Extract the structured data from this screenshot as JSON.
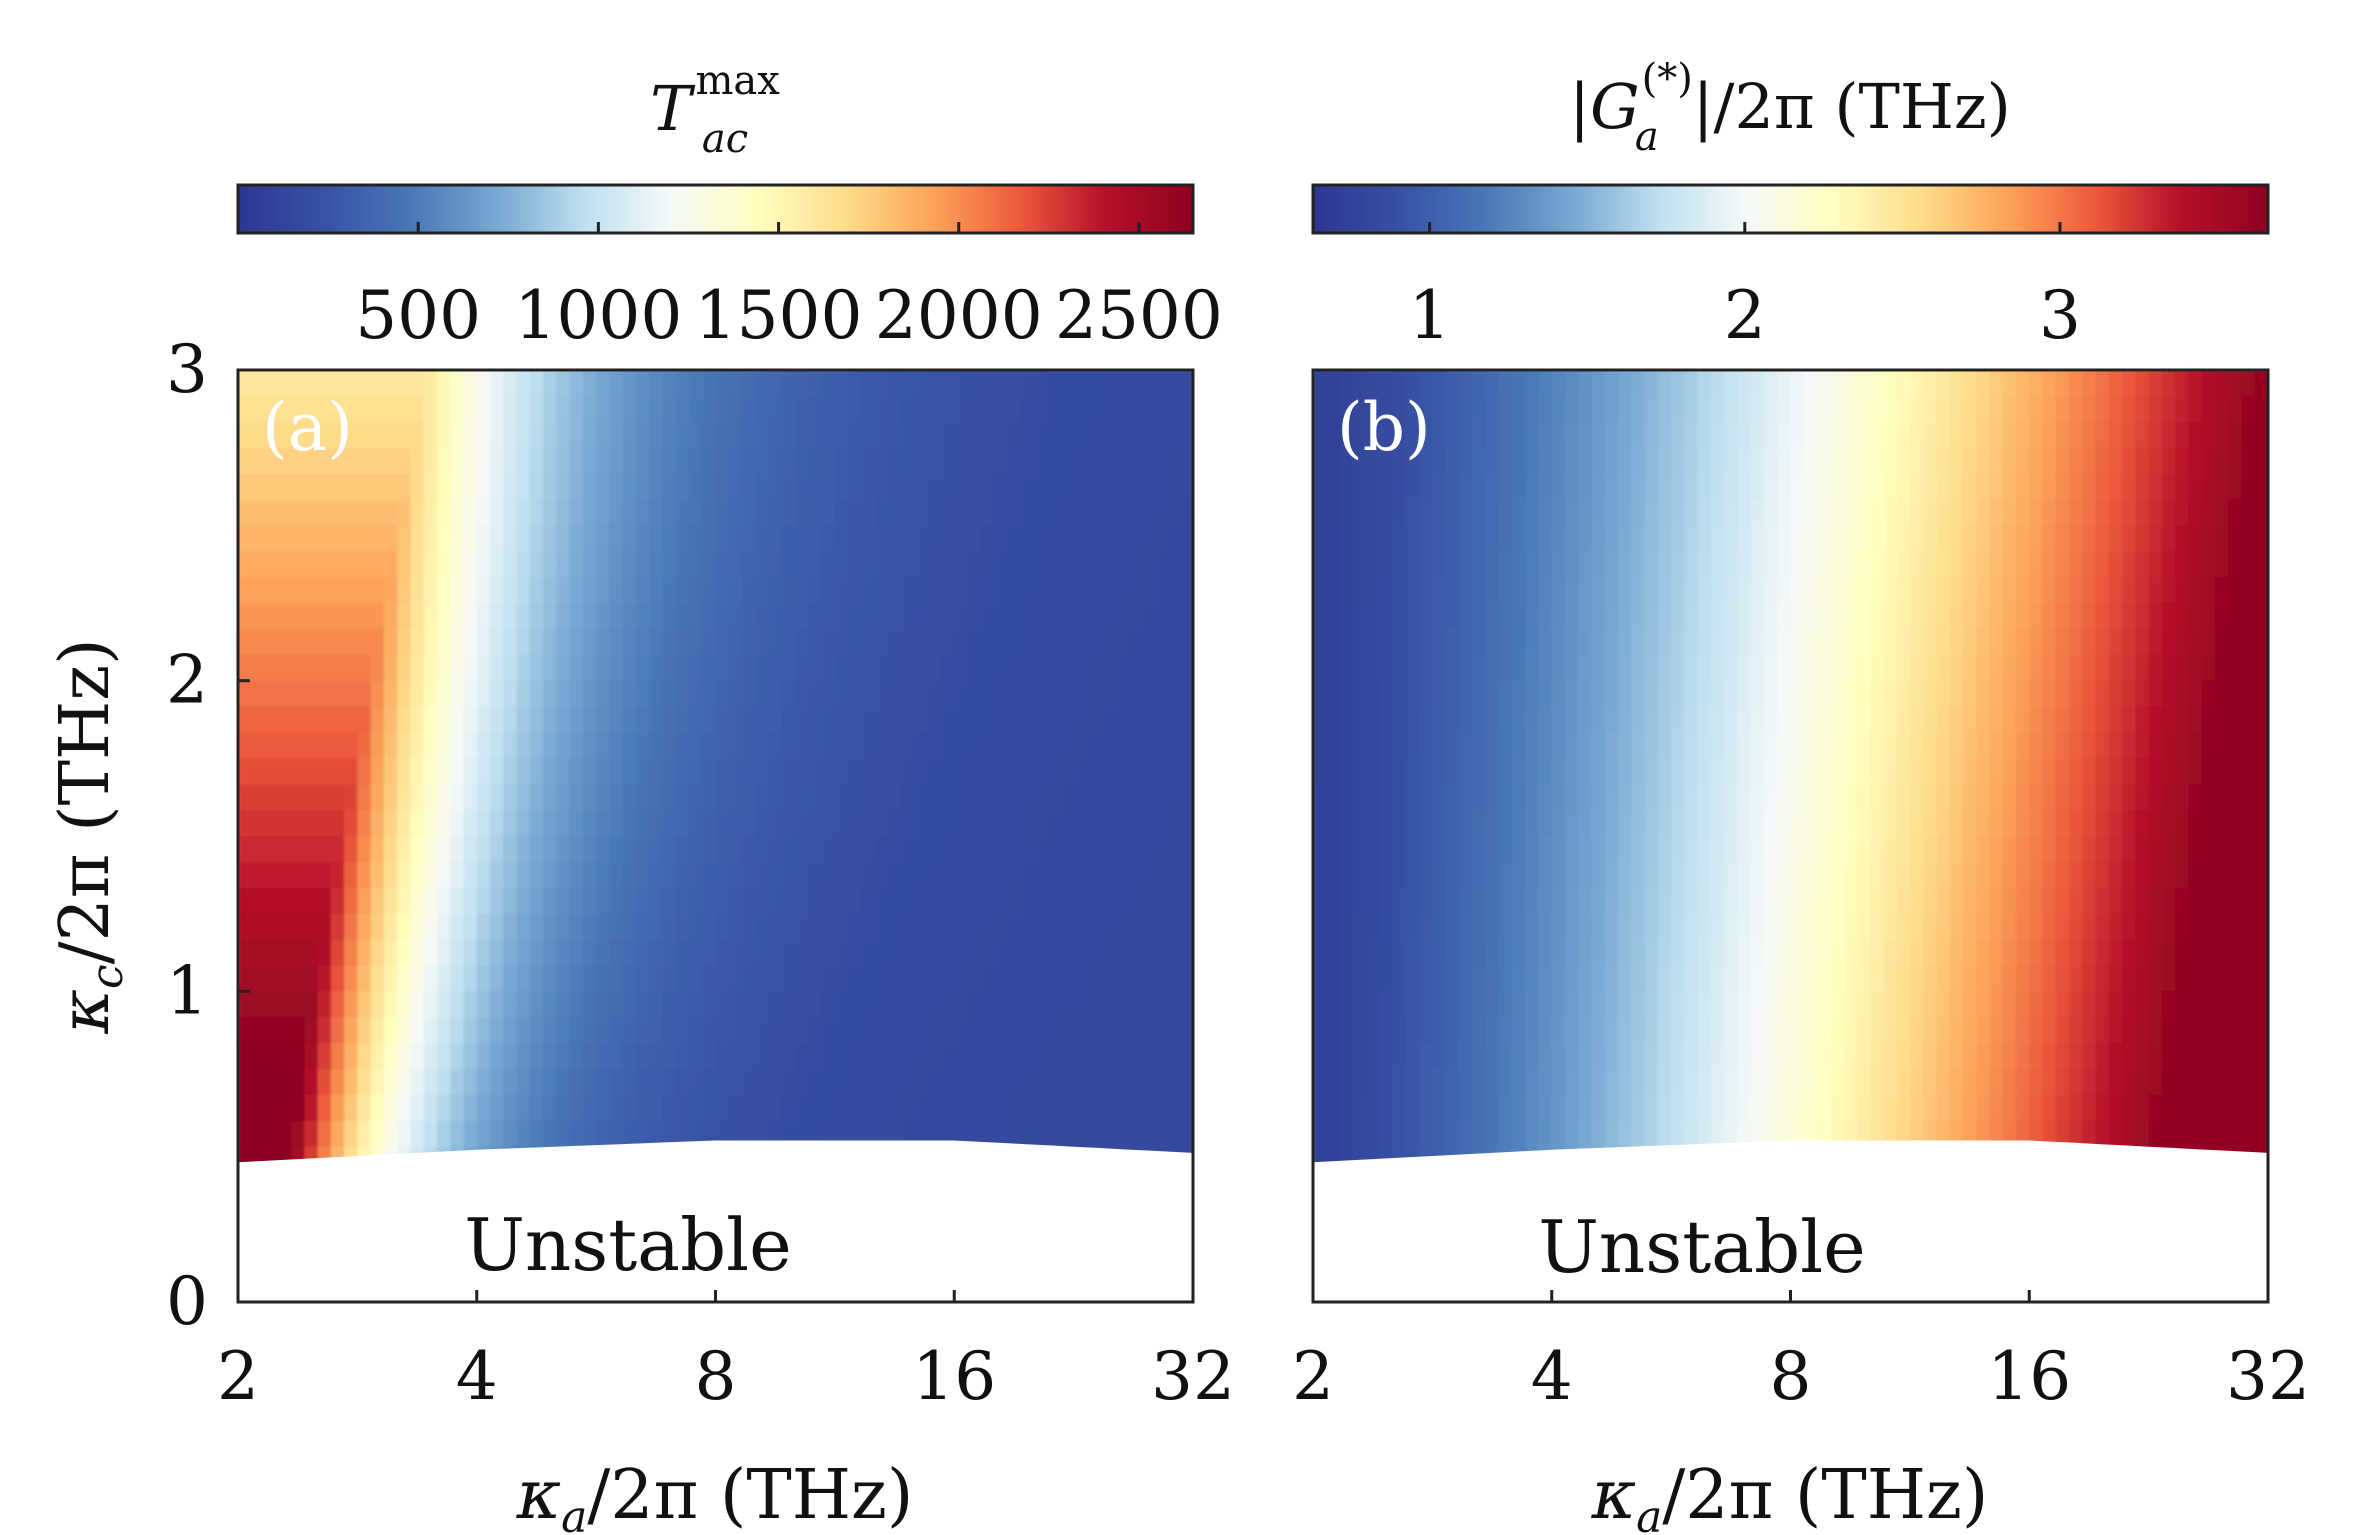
{
  "figure": {
    "colormap": [
      "#2e368f",
      "#3852a4",
      "#4a78b8",
      "#78a8d2",
      "#bfe0ef",
      "#f6f9f8",
      "#ffffbf",
      "#fedc8c",
      "#fca35a",
      "#ec5a3c",
      "#b4102a",
      "#8e0220"
    ]
  },
  "chart_data": [
    {
      "type": "heatmap",
      "panel_label": "(a)",
      "colorbar": {
        "title_main": "T",
        "title_sup": "max",
        "title_sub": "ac",
        "ticks": [
          "500",
          "1000",
          "1500",
          "2000",
          "2500"
        ],
        "tick_values": [
          500,
          1000,
          1500,
          2000,
          2500
        ],
        "range": [
          0,
          2650
        ]
      },
      "x": {
        "label": "κa/2π (THz)",
        "label_main": "κ",
        "label_sub": "a",
        "label_rest": "/2π (THz)",
        "scale": "log2",
        "ticks": [
          "2",
          "4",
          "8",
          "16",
          "32"
        ],
        "tick_values": [
          2,
          4,
          8,
          16,
          32
        ],
        "range": [
          2,
          32
        ]
      },
      "y": {
        "label": "κc/2π (THz)",
        "label_main": "κ",
        "label_sub": "c",
        "label_rest": "/2π (THz)",
        "ticks": [
          "0",
          "1",
          "2",
          "3"
        ],
        "tick_values": [
          0,
          1,
          2,
          3
        ],
        "range": [
          0,
          3
        ]
      },
      "unstable_label": "Unstable",
      "stability_boundary": {
        "x": [
          2,
          4,
          8,
          16,
          32
        ],
        "y": [
          0.45,
          0.49,
          0.52,
          0.52,
          0.48
        ]
      },
      "trend": "Maximum near small κa and small κc (~2600), decreasing toward large κa (~200)"
    },
    {
      "type": "heatmap",
      "panel_label": "(b)",
      "colorbar": {
        "title_pre": "|",
        "title_main": "G",
        "title_sup": "(*)",
        "title_sub": "a",
        "title_rest": "|/2π (THz)",
        "ticks": [
          "1",
          "2",
          "3"
        ],
        "tick_values": [
          1,
          2,
          3
        ],
        "range": [
          0.63,
          3.66
        ]
      },
      "x": {
        "label": "κa/2π (THz)",
        "label_main": "κ",
        "label_sub": "a",
        "label_rest": "/2π (THz)",
        "scale": "log2",
        "ticks": [
          "2",
          "4",
          "8",
          "16",
          "32"
        ],
        "tick_values": [
          2,
          4,
          8,
          16,
          32
        ],
        "range": [
          2,
          32
        ]
      },
      "y": {
        "ticks": [],
        "range": [
          0,
          3
        ]
      },
      "unstable_label": "Unstable",
      "stability_boundary": {
        "x": [
          2,
          4,
          8,
          16,
          32
        ],
        "y": [
          0.45,
          0.49,
          0.52,
          0.52,
          0.48
        ]
      },
      "trend": "Increases with κa from ~0.7 at κa=2 to ~3.6 at κa=32, rising toward low κc"
    }
  ]
}
